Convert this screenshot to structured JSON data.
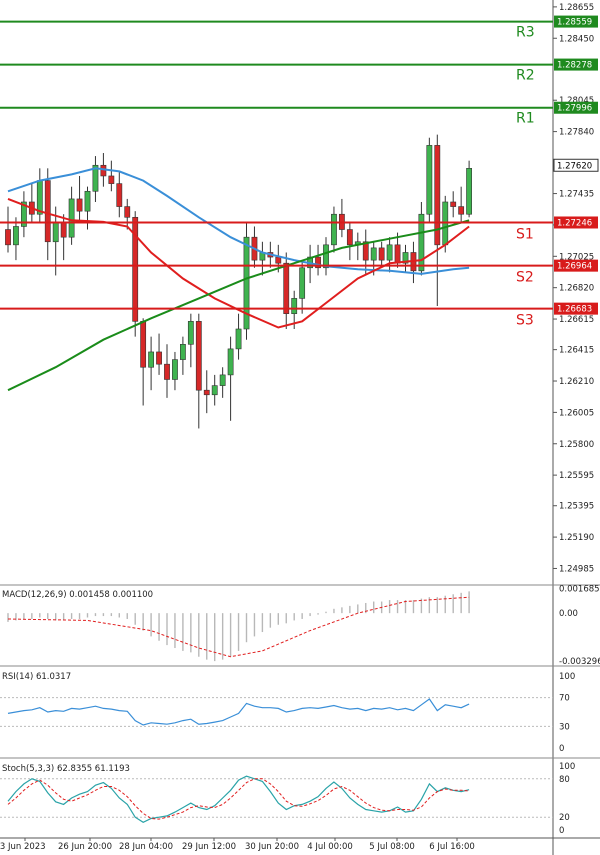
{
  "chart_data": {
    "type": "candlestick",
    "instrument_note": "",
    "price_axis": {
      "ticks": [
        "1.28655",
        "1.28450",
        "1.28045",
        "1.27840",
        "1.27435",
        "1.27230",
        "1.27025",
        "1.26820",
        "1.26615",
        "1.26415",
        "1.26210",
        "1.26005",
        "1.25800",
        "1.25595",
        "1.25395",
        "1.25190",
        "1.24985"
      ],
      "range": [
        1.2489,
        1.287
      ]
    },
    "x_axis_labels": [
      "23 Jun 2023",
      "26 Jun 20:00",
      "28 Jun 04:00",
      "29 Jun 12:00",
      "30 Jun 20:00",
      "4 Jul 00:00",
      "5 Jul 08:00",
      "6 Jul 16:00"
    ],
    "levels": [
      {
        "name": "R3",
        "price": "1.28559",
        "value": 1.28559,
        "color": "#1f8a1f"
      },
      {
        "name": "R2",
        "price": "1.28278",
        "value": 1.28278,
        "color": "#1f8a1f"
      },
      {
        "name": "R1",
        "price": "1.27996",
        "value": 1.27996,
        "color": "#1f8a1f"
      },
      {
        "name": "S1",
        "price": "1.27246",
        "value": 1.27246,
        "color": "#d81b1b"
      },
      {
        "name": "S2",
        "price": "1.26964",
        "value": 1.26964,
        "color": "#d81b1b"
      },
      {
        "name": "S3",
        "price": "1.26683",
        "value": 1.26683,
        "color": "#d81b1b"
      }
    ],
    "current_price": {
      "label": "1.27620",
      "value": 1.2762
    },
    "candles": [
      [
        1.272,
        1.2735,
        1.2705,
        1.271
      ],
      [
        1.271,
        1.2728,
        1.27,
        1.2722
      ],
      [
        1.2722,
        1.2745,
        1.2715,
        1.2738
      ],
      [
        1.2738,
        1.275,
        1.2725,
        1.273
      ],
      [
        1.273,
        1.276,
        1.2725,
        1.2752
      ],
      [
        1.2752,
        1.276,
        1.27,
        1.2712
      ],
      [
        1.2712,
        1.2735,
        1.269,
        1.2725
      ],
      [
        1.2725,
        1.273,
        1.27,
        1.2715
      ],
      [
        1.2715,
        1.2748,
        1.271,
        1.274
      ],
      [
        1.274,
        1.2755,
        1.2725,
        1.2732
      ],
      [
        1.2732,
        1.2748,
        1.272,
        1.2745
      ],
      [
        1.2745,
        1.2768,
        1.2738,
        1.2762
      ],
      [
        1.2762,
        1.277,
        1.2748,
        1.2755
      ],
      [
        1.2755,
        1.2765,
        1.2745,
        1.275
      ],
      [
        1.275,
        1.2758,
        1.2728,
        1.2735
      ],
      [
        1.2735,
        1.274,
        1.272,
        1.2728
      ],
      [
        1.2728,
        1.2732,
        1.265,
        1.266
      ],
      [
        1.266,
        1.2662,
        1.2605,
        1.263
      ],
      [
        1.263,
        1.265,
        1.2615,
        1.264
      ],
      [
        1.264,
        1.2652,
        1.2625,
        1.2632
      ],
      [
        1.2632,
        1.2645,
        1.261,
        1.2622
      ],
      [
        1.2622,
        1.264,
        1.2615,
        1.2635
      ],
      [
        1.2635,
        1.265,
        1.2625,
        1.2645
      ],
      [
        1.2645,
        1.2665,
        1.263,
        1.266
      ],
      [
        1.266,
        1.2665,
        1.259,
        1.2615
      ],
      [
        1.2615,
        1.2628,
        1.26,
        1.2612
      ],
      [
        1.2612,
        1.2625,
        1.2605,
        1.2618
      ],
      [
        1.2618,
        1.263,
        1.261,
        1.2625
      ],
      [
        1.2625,
        1.265,
        1.2595,
        1.2642
      ],
      [
        1.2642,
        1.2665,
        1.2635,
        1.2655
      ],
      [
        1.2655,
        1.2725,
        1.2648,
        1.2715
      ],
      [
        1.2715,
        1.2722,
        1.2695,
        1.27
      ],
      [
        1.27,
        1.2712,
        1.269,
        1.2705
      ],
      [
        1.2705,
        1.2712,
        1.2695,
        1.2702
      ],
      [
        1.2702,
        1.271,
        1.2692,
        1.2698
      ],
      [
        1.2698,
        1.2705,
        1.2655,
        1.2665
      ],
      [
        1.2665,
        1.268,
        1.2655,
        1.2675
      ],
      [
        1.2675,
        1.27,
        1.2665,
        1.2695
      ],
      [
        1.2695,
        1.271,
        1.2685,
        1.2702
      ],
      [
        1.2702,
        1.271,
        1.269,
        1.2695
      ],
      [
        1.2695,
        1.2715,
        1.269,
        1.271
      ],
      [
        1.271,
        1.2735,
        1.2705,
        1.273
      ],
      [
        1.273,
        1.274,
        1.2715,
        1.272
      ],
      [
        1.272,
        1.2725,
        1.27,
        1.271
      ],
      [
        1.271,
        1.2718,
        1.27,
        1.2712
      ],
      [
        1.2712,
        1.272,
        1.269,
        1.27
      ],
      [
        1.27,
        1.2712,
        1.269,
        1.2708
      ],
      [
        1.2708,
        1.2712,
        1.2695,
        1.27
      ],
      [
        1.27,
        1.2715,
        1.2692,
        1.271
      ],
      [
        1.271,
        1.2718,
        1.2695,
        1.2698
      ],
      [
        1.2698,
        1.271,
        1.2692,
        1.2705
      ],
      [
        1.2705,
        1.2712,
        1.2685,
        1.2693
      ],
      [
        1.2693,
        1.2738,
        1.269,
        1.273
      ],
      [
        1.273,
        1.278,
        1.2725,
        1.2775
      ],
      [
        1.2775,
        1.2782,
        1.267,
        1.271
      ],
      [
        1.271,
        1.2742,
        1.2705,
        1.2738
      ],
      [
        1.2738,
        1.2745,
        1.2728,
        1.2735
      ],
      [
        1.2735,
        1.2748,
        1.2725,
        1.273
      ],
      [
        1.273,
        1.2765,
        1.2728,
        1.276
      ]
    ],
    "moving_averages": [
      {
        "color": "#3a8fd8",
        "points": [
          [
            0,
            1.2745
          ],
          [
            4,
            1.2752
          ],
          [
            8,
            1.2756
          ],
          [
            11,
            1.276
          ],
          [
            14,
            1.2758
          ],
          [
            17,
            1.2752
          ],
          [
            20,
            1.2742
          ],
          [
            24,
            1.2728
          ],
          [
            28,
            1.2715
          ],
          [
            32,
            1.2705
          ],
          [
            36,
            1.27
          ],
          [
            40,
            1.2696
          ],
          [
            44,
            1.2694
          ],
          [
            48,
            1.2693
          ],
          [
            52,
            1.2691
          ],
          [
            56,
            1.2694
          ],
          [
            58,
            1.2695
          ]
        ]
      },
      {
        "color": "#e01e1e",
        "points": [
          [
            0,
            1.274
          ],
          [
            4,
            1.2732
          ],
          [
            8,
            1.2726
          ],
          [
            12,
            1.2725
          ],
          [
            15,
            1.2722
          ],
          [
            18,
            1.2705
          ],
          [
            22,
            1.2688
          ],
          [
            26,
            1.2675
          ],
          [
            30,
            1.2665
          ],
          [
            34,
            1.2656
          ],
          [
            37,
            1.266
          ],
          [
            40,
            1.2672
          ],
          [
            44,
            1.2688
          ],
          [
            48,
            1.2698
          ],
          [
            52,
            1.27
          ],
          [
            55,
            1.271
          ],
          [
            58,
            1.2722
          ]
        ]
      },
      {
        "color": "#1a8c1a",
        "points": [
          [
            0,
            1.2615
          ],
          [
            6,
            1.263
          ],
          [
            12,
            1.2648
          ],
          [
            18,
            1.2662
          ],
          [
            24,
            1.2675
          ],
          [
            30,
            1.2688
          ],
          [
            36,
            1.2698
          ],
          [
            42,
            1.2708
          ],
          [
            48,
            1.2714
          ],
          [
            54,
            1.272
          ],
          [
            58,
            1.2726
          ]
        ]
      }
    ],
    "macd": {
      "label": "MACD(12,26,9) 0.001458 0.001100",
      "ticks": [
        "0.001685",
        "0.00",
        "-0.003296"
      ],
      "range": [
        -0.0035,
        0.0018
      ],
      "histogram": [
        -0.0006,
        -0.0005,
        -0.0004,
        -0.0004,
        -0.0003,
        -0.0004,
        -0.0005,
        -0.0005,
        -0.0004,
        -0.0004,
        -0.0003,
        -0.0002,
        -0.0002,
        -0.0002,
        -0.0003,
        -0.0004,
        -0.0008,
        -0.0012,
        -0.0016,
        -0.0019,
        -0.0022,
        -0.0024,
        -0.0026,
        -0.0027,
        -0.003,
        -0.0032,
        -0.0033,
        -0.0032,
        -0.003,
        -0.0026,
        -0.002,
        -0.0016,
        -0.0013,
        -0.001,
        -0.0008,
        -0.0007,
        -0.0005,
        -0.0004,
        -0.0002,
        -0.0001,
        0.0001,
        0.0003,
        0.0004,
        0.0005,
        0.0006,
        0.0007,
        0.0008,
        0.0008,
        0.0009,
        0.0009,
        0.0009,
        0.0009,
        0.001,
        0.0011,
        0.0011,
        0.0012,
        0.0013,
        0.0014,
        0.0015
      ],
      "signal": [
        [
          0,
          -0.0004
        ],
        [
          10,
          -0.0005
        ],
        [
          18,
          -0.0012
        ],
        [
          24,
          -0.0024
        ],
        [
          28,
          -0.003
        ],
        [
          32,
          -0.0026
        ],
        [
          38,
          -0.0012
        ],
        [
          44,
          0.0
        ],
        [
          50,
          0.0008
        ],
        [
          58,
          0.0011
        ]
      ]
    },
    "rsi": {
      "label": "RSI(14) 61.0317",
      "ticks": [
        "100",
        "70",
        "30",
        "0"
      ],
      "range": [
        0,
        100
      ],
      "values": [
        48,
        50,
        52,
        53,
        56,
        50,
        52,
        51,
        55,
        54,
        56,
        58,
        55,
        54,
        52,
        51,
        38,
        32,
        35,
        34,
        33,
        35,
        38,
        40,
        33,
        34,
        36,
        38,
        43,
        48,
        62,
        58,
        56,
        56,
        55,
        50,
        52,
        55,
        56,
        55,
        57,
        59,
        56,
        54,
        55,
        52,
        55,
        54,
        56,
        53,
        55,
        52,
        60,
        68,
        52,
        60,
        58,
        56,
        61
      ]
    },
    "stoch": {
      "label": "Stoch(5,3,3) 62.8355 61.1193",
      "ticks": [
        "100",
        "80",
        "20",
        "0"
      ],
      "range": [
        0,
        100
      ],
      "k": [
        45,
        60,
        72,
        80,
        76,
        58,
        44,
        40,
        50,
        56,
        60,
        70,
        74,
        65,
        50,
        40,
        20,
        12,
        18,
        20,
        22,
        28,
        35,
        42,
        35,
        32,
        38,
        50,
        62,
        78,
        84,
        80,
        76,
        60,
        42,
        32,
        38,
        40,
        45,
        52,
        65,
        75,
        65,
        50,
        40,
        32,
        30,
        28,
        30,
        36,
        28,
        30,
        48,
        72,
        60,
        66,
        62,
        60,
        63
      ],
      "d": [
        40,
        50,
        62,
        72,
        78,
        70,
        58,
        48,
        45,
        50,
        55,
        62,
        68,
        68,
        62,
        52,
        38,
        26,
        18,
        17,
        20,
        24,
        28,
        35,
        38,
        36,
        35,
        40,
        50,
        62,
        74,
        80,
        80,
        72,
        60,
        45,
        38,
        37,
        41,
        46,
        54,
        64,
        68,
        62,
        52,
        42,
        35,
        31,
        30,
        32,
        32,
        31,
        36,
        50,
        60,
        64,
        62,
        62,
        61
      ]
    }
  }
}
